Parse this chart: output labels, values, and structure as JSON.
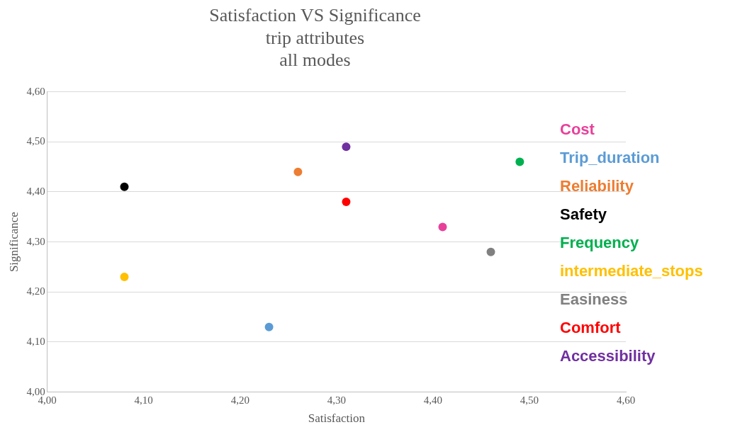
{
  "chart_data": {
    "type": "scatter",
    "title": "Satisfaction VS Significance",
    "subtitle": "trip attributes\nall modes",
    "xlabel": "Satisfaction",
    "ylabel": "Significance",
    "xlim": [
      4.0,
      4.6
    ],
    "ylim": [
      4.0,
      4.6
    ],
    "xticks": [
      {
        "value": 4.0,
        "label": "4,00"
      },
      {
        "value": 4.1,
        "label": "4,10"
      },
      {
        "value": 4.2,
        "label": "4,20"
      },
      {
        "value": 4.3,
        "label": "4,30"
      },
      {
        "value": 4.4,
        "label": "4,40"
      },
      {
        "value": 4.5,
        "label": "4,50"
      },
      {
        "value": 4.6,
        "label": "4,60"
      }
    ],
    "yticks": [
      {
        "value": 4.0,
        "label": "4,00"
      },
      {
        "value": 4.1,
        "label": "4,10"
      },
      {
        "value": 4.2,
        "label": "4,20"
      },
      {
        "value": 4.3,
        "label": "4,30"
      },
      {
        "value": 4.4,
        "label": "4,40"
      },
      {
        "value": 4.5,
        "label": "4,50"
      },
      {
        "value": 4.6,
        "label": "4,60"
      }
    ],
    "grid": "y",
    "legend": "right",
    "marker": "circle",
    "series": [
      {
        "name": "Cost",
        "color": "#e8409a",
        "x": [
          4.41
        ],
        "values": [
          4.33
        ]
      },
      {
        "name": "Trip_duration",
        "color": "#5b9bd5",
        "x": [
          4.23
        ],
        "values": [
          4.13
        ]
      },
      {
        "name": "Reliability",
        "color": "#ed7d31",
        "x": [
          4.26
        ],
        "values": [
          4.44
        ]
      },
      {
        "name": "Safety",
        "color": "#000000",
        "x": [
          4.08
        ],
        "values": [
          4.41
        ]
      },
      {
        "name": "Frequency",
        "color": "#00b050",
        "x": [
          4.49
        ],
        "values": [
          4.46
        ]
      },
      {
        "name": "intermediate_stops",
        "color": "#ffc000",
        "x": [
          4.08
        ],
        "values": [
          4.23
        ]
      },
      {
        "name": "Easiness",
        "color": "#808080",
        "x": [
          4.46
        ],
        "values": [
          4.28
        ]
      },
      {
        "name": "Comfort",
        "color": "#ff0000",
        "x": [
          4.31
        ],
        "values": [
          4.38
        ]
      },
      {
        "name": "Accessibility",
        "color": "#7030a0",
        "x": [
          4.31
        ],
        "values": [
          4.49
        ]
      }
    ]
  }
}
